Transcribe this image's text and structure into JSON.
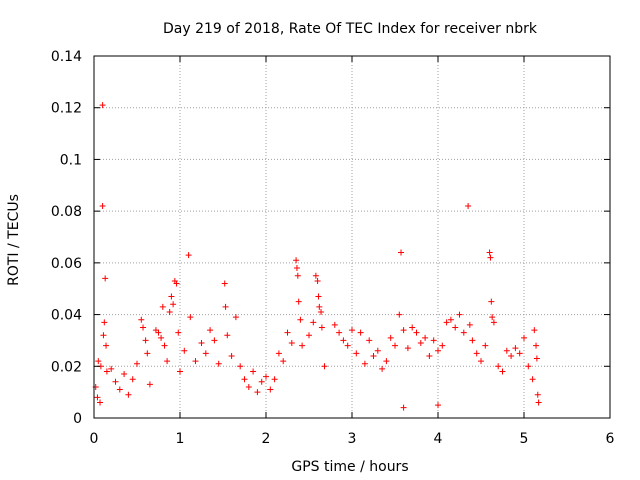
{
  "chart_data": {
    "type": "scatter",
    "title": "Day 219 of 2018, Rate Of TEC Index for receiver nbrk",
    "xlabel": "GPS time / hours",
    "ylabel": "ROTI / TECUs",
    "xlim": [
      0,
      6
    ],
    "ylim": [
      0,
      0.14
    ],
    "xticks": [
      0,
      1,
      2,
      3,
      4,
      5,
      6
    ],
    "yticks": [
      0,
      0.02,
      0.04,
      0.06,
      0.08,
      0.1,
      0.12,
      0.14
    ],
    "xtick_labels": [
      "0",
      "1",
      "2",
      "3",
      "4",
      "5",
      "6"
    ],
    "ytick_labels": [
      "0",
      "0.02",
      "0.04",
      "0.06",
      "0.08",
      "0.1",
      "0.12",
      "0.14"
    ],
    "grid": true,
    "marker": "+",
    "marker_color": "#ff0000",
    "series": [
      {
        "name": "ROTI",
        "points": [
          [
            0.1,
            0.121
          ],
          [
            0.1,
            0.082
          ],
          [
            0.13,
            0.054
          ],
          [
            0.12,
            0.037
          ],
          [
            0.11,
            0.032
          ],
          [
            0.14,
            0.028
          ],
          [
            0.05,
            0.022
          ],
          [
            0.08,
            0.02
          ],
          [
            0.15,
            0.018
          ],
          [
            0.02,
            0.012
          ],
          [
            0.04,
            0.008
          ],
          [
            0.07,
            0.006
          ],
          [
            0.2,
            0.019
          ],
          [
            0.25,
            0.014
          ],
          [
            0.3,
            0.011
          ],
          [
            0.35,
            0.017
          ],
          [
            0.4,
            0.009
          ],
          [
            0.45,
            0.015
          ],
          [
            0.5,
            0.021
          ],
          [
            0.55,
            0.038
          ],
          [
            0.57,
            0.035
          ],
          [
            0.6,
            0.03
          ],
          [
            0.62,
            0.025
          ],
          [
            0.65,
            0.013
          ],
          [
            0.72,
            0.034
          ],
          [
            0.75,
            0.033
          ],
          [
            0.78,
            0.031
          ],
          [
            0.8,
            0.043
          ],
          [
            0.82,
            0.028
          ],
          [
            0.85,
            0.022
          ],
          [
            0.88,
            0.041
          ],
          [
            0.9,
            0.047
          ],
          [
            0.92,
            0.044
          ],
          [
            0.94,
            0.053
          ],
          [
            0.96,
            0.052
          ],
          [
            0.98,
            0.033
          ],
          [
            1.0,
            0.018
          ],
          [
            1.05,
            0.026
          ],
          [
            1.1,
            0.063
          ],
          [
            1.12,
            0.039
          ],
          [
            1.18,
            0.022
          ],
          [
            1.25,
            0.029
          ],
          [
            1.3,
            0.025
          ],
          [
            1.35,
            0.034
          ],
          [
            1.4,
            0.03
          ],
          [
            1.45,
            0.021
          ],
          [
            1.52,
            0.052
          ],
          [
            1.53,
            0.043
          ],
          [
            1.55,
            0.032
          ],
          [
            1.6,
            0.024
          ],
          [
            1.65,
            0.039
          ],
          [
            1.7,
            0.02
          ],
          [
            1.75,
            0.015
          ],
          [
            1.8,
            0.012
          ],
          [
            1.85,
            0.018
          ],
          [
            1.9,
            0.01
          ],
          [
            1.95,
            0.014
          ],
          [
            2.0,
            0.016
          ],
          [
            2.05,
            0.011
          ],
          [
            2.1,
            0.015
          ],
          [
            2.15,
            0.025
          ],
          [
            2.2,
            0.022
          ],
          [
            2.25,
            0.033
          ],
          [
            2.3,
            0.029
          ],
          [
            2.35,
            0.061
          ],
          [
            2.36,
            0.058
          ],
          [
            2.37,
            0.055
          ],
          [
            2.38,
            0.045
          ],
          [
            2.4,
            0.038
          ],
          [
            2.42,
            0.028
          ],
          [
            2.5,
            0.032
          ],
          [
            2.55,
            0.037
          ],
          [
            2.58,
            0.055
          ],
          [
            2.6,
            0.053
          ],
          [
            2.61,
            0.047
          ],
          [
            2.62,
            0.043
          ],
          [
            2.64,
            0.041
          ],
          [
            2.65,
            0.035
          ],
          [
            2.68,
            0.02
          ],
          [
            2.8,
            0.036
          ],
          [
            2.85,
            0.033
          ],
          [
            2.9,
            0.03
          ],
          [
            2.95,
            0.028
          ],
          [
            3.0,
            0.034
          ],
          [
            3.05,
            0.025
          ],
          [
            3.1,
            0.033
          ],
          [
            3.15,
            0.021
          ],
          [
            3.2,
            0.03
          ],
          [
            3.25,
            0.024
          ],
          [
            3.3,
            0.026
          ],
          [
            3.35,
            0.019
          ],
          [
            3.4,
            0.022
          ],
          [
            3.45,
            0.031
          ],
          [
            3.5,
            0.028
          ],
          [
            3.55,
            0.04
          ],
          [
            3.57,
            0.064
          ],
          [
            3.6,
            0.034
          ],
          [
            3.65,
            0.027
          ],
          [
            3.7,
            0.035
          ],
          [
            3.75,
            0.033
          ],
          [
            3.8,
            0.029
          ],
          [
            3.85,
            0.031
          ],
          [
            3.9,
            0.024
          ],
          [
            3.95,
            0.03
          ],
          [
            4.0,
            0.026
          ],
          [
            4.05,
            0.028
          ],
          [
            4.1,
            0.037
          ],
          [
            4.15,
            0.038
          ],
          [
            4.2,
            0.035
          ],
          [
            4.25,
            0.04
          ],
          [
            4.3,
            0.033
          ],
          [
            4.35,
            0.082
          ],
          [
            4.37,
            0.036
          ],
          [
            4.4,
            0.03
          ],
          [
            4.45,
            0.025
          ],
          [
            4.5,
            0.022
          ],
          [
            4.55,
            0.028
          ],
          [
            4.6,
            0.064
          ],
          [
            4.61,
            0.062
          ],
          [
            4.62,
            0.045
          ],
          [
            4.63,
            0.039
          ],
          [
            4.65,
            0.037
          ],
          [
            4.7,
            0.02
          ],
          [
            4.75,
            0.018
          ],
          [
            4.8,
            0.026
          ],
          [
            4.85,
            0.024
          ],
          [
            4.9,
            0.027
          ],
          [
            4.95,
            0.025
          ],
          [
            5.0,
            0.031
          ],
          [
            5.05,
            0.02
          ],
          [
            5.1,
            0.015
          ],
          [
            5.12,
            0.034
          ],
          [
            5.14,
            0.028
          ],
          [
            5.15,
            0.023
          ],
          [
            5.16,
            0.009
          ],
          [
            5.17,
            0.006
          ],
          [
            3.6,
            0.004
          ],
          [
            4.0,
            0.005
          ]
        ]
      }
    ]
  }
}
